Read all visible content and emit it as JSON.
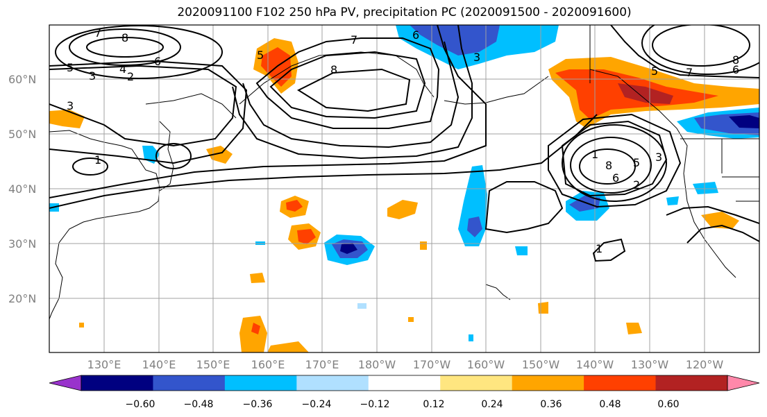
{
  "title": "2020091100 F102 250 hPa PV, precipitation PC (2020091500 - 2020091600)",
  "latitude_labels": [
    "60°N",
    "50°N",
    "40°N",
    "30°N",
    "20°N"
  ],
  "longitude_labels": [
    "130°E",
    "140°E",
    "150°E",
    "160°E",
    "170°E",
    "180°W",
    "170°W",
    "160°W",
    "150°W",
    "140°W",
    "130°W",
    "120°W"
  ],
  "colorbar": {
    "tick_labels": [
      "−0.60",
      "−0.48",
      "−0.36",
      "−0.24",
      "−0.12",
      "0.12",
      "0.24",
      "0.36",
      "0.48",
      "0.60"
    ],
    "colors": [
      "#9933cc",
      "#000080",
      "#3355cc",
      "#00bfff",
      "#b0e0ff",
      "#ffffff",
      "#ffe680",
      "#ffa500",
      "#ff4000",
      "#b22222",
      "#ff88aa"
    ]
  },
  "contour_labels": [
    "7",
    "8",
    "5",
    "3",
    "4",
    "6",
    "2",
    "3",
    "1",
    "5",
    "7",
    "8",
    "6",
    "3",
    "1",
    "8",
    "5",
    "3",
    "2",
    "6",
    "1",
    "7",
    "8",
    "6",
    "5"
  ],
  "colors": {
    "coast": "#000000",
    "grid": "#a0a0a0",
    "contour": "#000000",
    "axis_text": "#808080"
  }
}
